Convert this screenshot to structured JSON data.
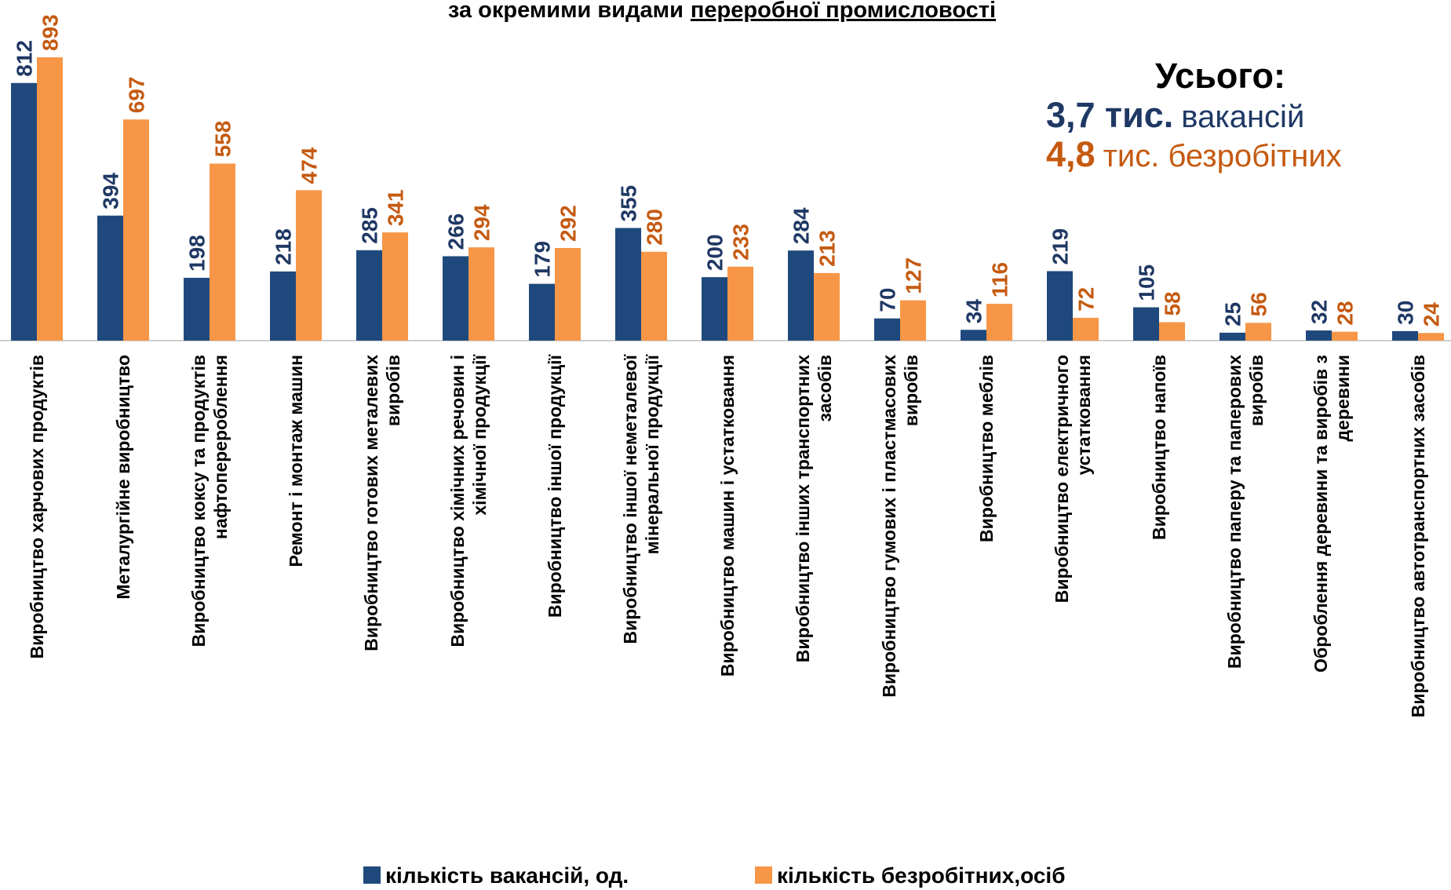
{
  "chart_data": {
    "type": "bar",
    "title": [
      "за окремими видами",
      "переробної промисловості"
    ],
    "annotations": {
      "total": "Усього:",
      "vacancies_bold": "3,7 тис.",
      "vacancies_text": "вакансій",
      "unemployed_bold": "4,8",
      "unemployed_text": "тис. безробітних"
    },
    "categories": [
      "Виробництво харчових продуктів",
      "Металургійне виробництво",
      "Виробництво коксу та продуктів\nнафтоперероблення",
      "Ремонт і монтаж машин",
      "Виробництво готових металевих\nвиробів",
      "Виробництво хімічних речовин і\nхімічної продукції",
      "Виробництво іншої продукції",
      "Виробництво іншої неметалевої\nмінеральної продукції",
      "Виробництво машин і устатковання",
      "Виробництво інших транспортних\nзасобів",
      "Виробництво гумових і пластмасових\nвиробів",
      "Виробництво меблів",
      "Виробництво електричного\nустатковання",
      "Виробництво напоїв",
      "Виробництво паперу та паперових\nвиробів",
      "Оброблення деревини та виробів з\nдеревини",
      "Виробництво автотранспортних засобів"
    ],
    "series": [
      {
        "name": "кількість вакансій, од.",
        "color": "#1f497d",
        "label_color": "#1f3864",
        "values": [
          812,
          394,
          198,
          218,
          285,
          266,
          179,
          355,
          200,
          284,
          70,
          34,
          219,
          105,
          25,
          32,
          30
        ]
      },
      {
        "name": "кількість безробітних,осіб",
        "color": "#f79646",
        "label_color": "#c55a11",
        "values": [
          893,
          697,
          558,
          474,
          341,
          294,
          292,
          280,
          233,
          213,
          127,
          116,
          72,
          58,
          56,
          28,
          24
        ]
      }
    ],
    "legend": "bottom"
  }
}
